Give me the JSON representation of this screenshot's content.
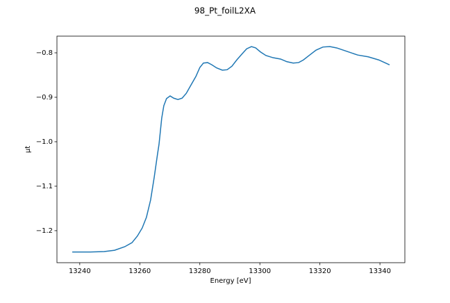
{
  "chart_data": {
    "type": "line",
    "title": "98_Pt_foilL2XA",
    "x_label": "Energy [eV]",
    "y_label": "μt",
    "color": "#1f77b4",
    "x": [
      13237.5,
      13243.5,
      13248.1,
      13251.6,
      13255.0,
      13257.4,
      13259.2,
      13260.8,
      13262.2,
      13263.6,
      13264.8,
      13265.9,
      13266.4,
      13267.3,
      13268.0,
      13268.9,
      13270.1,
      13271.3,
      13272.7,
      13274.1,
      13275.5,
      13277.0,
      13278.7,
      13280.0,
      13281.2,
      13282.6,
      13284.0,
      13285.6,
      13287.5,
      13289.1,
      13290.7,
      13292.3,
      13294.0,
      13295.6,
      13297.2,
      13298.6,
      13300.2,
      13302.0,
      13304.4,
      13306.9,
      13309.0,
      13311.1,
      13312.9,
      13314.5,
      13316.4,
      13318.7,
      13321.0,
      13323.3,
      13325.6,
      13329.1,
      13332.6,
      13336.1,
      13339.6,
      13343.2
    ],
    "values": [
      -1.248,
      -1.248,
      -1.247,
      -1.244,
      -1.236,
      -1.227,
      -1.212,
      -1.194,
      -1.17,
      -1.131,
      -1.08,
      -1.028,
      -1.006,
      -0.947,
      -0.919,
      -0.903,
      -0.897,
      -0.902,
      -0.905,
      -0.902,
      -0.891,
      -0.873,
      -0.853,
      -0.833,
      -0.823,
      -0.822,
      -0.827,
      -0.834,
      -0.839,
      -0.838,
      -0.83,
      -0.816,
      -0.803,
      -0.791,
      -0.786,
      -0.789,
      -0.798,
      -0.806,
      -0.811,
      -0.814,
      -0.82,
      -0.823,
      -0.822,
      -0.816,
      -0.806,
      -0.794,
      -0.787,
      -0.786,
      -0.789,
      -0.797,
      -0.805,
      -0.809,
      -0.816,
      -0.827
    ],
    "xlim": [
      13232.4,
      13348.3
    ],
    "xticks": [
      13240,
      13260,
      13280,
      13300,
      13320,
      13340
    ],
    "ylim": [
      -1.272,
      -0.7625
    ],
    "yticks": [
      {
        "value": -1.2,
        "label": "−1.2"
      },
      {
        "value": -1.1,
        "label": "−1.1"
      },
      {
        "value": -1.0,
        "label": "−1.0"
      },
      {
        "value": -0.9,
        "label": "−0.9"
      },
      {
        "value": -0.8,
        "label": "−0.8"
      }
    ]
  }
}
